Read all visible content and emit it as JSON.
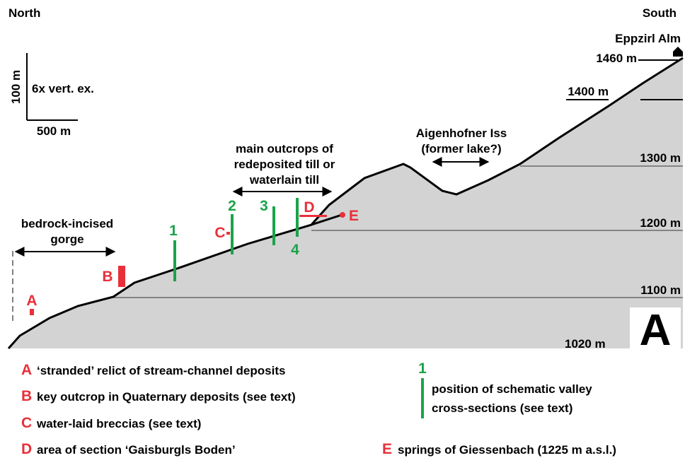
{
  "orientation": {
    "left": "North",
    "right": "South"
  },
  "scale_bar": {
    "vertical": "100 m",
    "exaggeration": "6x vert. ex.",
    "horizontal": "500 m"
  },
  "summit": "Eppzirl Alm",
  "elevations": {
    "e1460": "1460 m",
    "e1400": "1400 m",
    "e1300": "1300 m",
    "e1200": "1200 m",
    "e1100": "1100 m",
    "e1020": "1020 m"
  },
  "annotations": {
    "gorge": [
      "bedrock-incised",
      "gorge"
    ],
    "outcrops": [
      "main outcrops of",
      "redeposited till or",
      "waterlain till"
    ],
    "lake": [
      "Aigenhofner Iss",
      "(former lake?)"
    ]
  },
  "markers": {
    "letters": [
      "A",
      "B",
      "C",
      "D",
      "E"
    ],
    "sections": [
      "1",
      "2",
      "3",
      "4"
    ]
  },
  "panel_label": "A",
  "legend": {
    "items": [
      {
        "key": "A",
        "text": "‘stranded’ relict of stream-channel deposits"
      },
      {
        "key": "B",
        "text": "key outcrop in Quaternary deposits (see text)"
      },
      {
        "key": "C",
        "text": "water-laid breccias (see text)"
      },
      {
        "key": "D",
        "text": "area of section ‘Gaisburgls Boden’"
      },
      {
        "key": "E",
        "text": "springs of Giessenbach (1225 m a.s.l.)"
      }
    ],
    "section_key": "1",
    "section_text": [
      "position of schematic valley",
      "cross-sections (see text)"
    ]
  }
}
